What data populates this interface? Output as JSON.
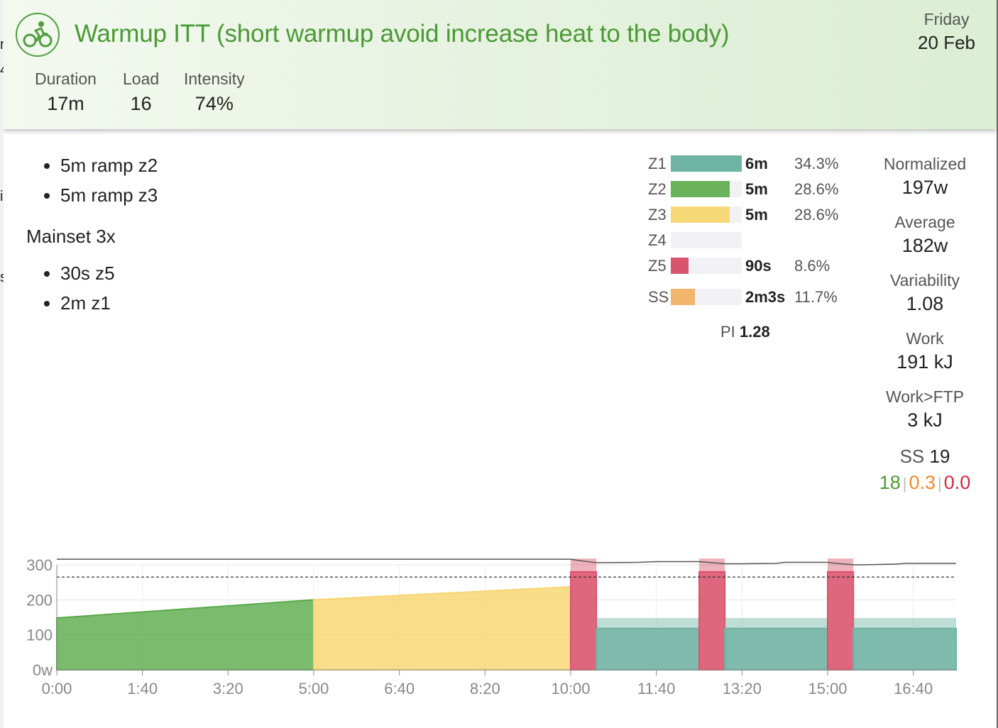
{
  "background": {
    "fragments": [
      "n",
      "4",
      "i",
      "s"
    ]
  },
  "header": {
    "icon": "bike-icon",
    "title": "Warmup ITT (short warmup avoid increase heat to the body)",
    "day": "Friday",
    "date": "20 Feb",
    "stats": [
      {
        "label": "Duration",
        "value": "17m"
      },
      {
        "label": "Load",
        "value": "16"
      },
      {
        "label": "Intensity",
        "value": "74%"
      }
    ]
  },
  "description": {
    "block1": [
      "5m ramp z2",
      "5m ramp z3"
    ],
    "heading": "Mainset 3x",
    "block2": [
      "30s z5",
      "2m z1"
    ]
  },
  "zones": [
    {
      "label": "Z1",
      "duration": "6m",
      "percent": "34.3%",
      "fill": 1.0,
      "color": "#6fb3a2"
    },
    {
      "label": "Z2",
      "duration": "5m",
      "percent": "28.6%",
      "fill": 0.834,
      "color": "#6ab35a"
    },
    {
      "label": "Z3",
      "duration": "5m",
      "percent": "28.6%",
      "fill": 0.834,
      "color": "#f7d876"
    },
    {
      "label": "Z4",
      "duration": "",
      "percent": "",
      "fill": 0,
      "color": "#f2a14b"
    },
    {
      "label": "Z5",
      "duration": "90s",
      "percent": "8.6%",
      "fill": 0.25,
      "color": "#d9546d"
    },
    {
      "label": "SS",
      "duration": "2m3s",
      "percent": "11.7%",
      "fill": 0.34,
      "color": "#f2b56b"
    }
  ],
  "pi": {
    "label": "PI",
    "value": "1.28"
  },
  "metrics": [
    {
      "label": "Normalized",
      "value": "197w"
    },
    {
      "label": "Average",
      "value": "182w"
    },
    {
      "label": "Variability",
      "value": "1.08"
    },
    {
      "label": "Work",
      "value": "191 kJ"
    },
    {
      "label": "Work>FTP",
      "value": "3 kJ"
    }
  ],
  "ss": {
    "label": "SS",
    "value": "19",
    "green": "18",
    "orange": "0.3",
    "red": "0.0"
  },
  "chart_data": {
    "type": "area",
    "x_unit": "seconds",
    "xlim": [
      0,
      1050
    ],
    "ylim": [
      0,
      300
    ],
    "y_ticks": [
      0,
      100,
      200,
      300
    ],
    "y_tick_labels": [
      "0w",
      "100",
      "200",
      "300"
    ],
    "x_ticks": [
      0,
      100,
      200,
      300,
      400,
      500,
      600,
      700,
      800,
      900,
      1000
    ],
    "x_tick_labels": [
      "0:00",
      "1:40",
      "3:20",
      "5:00",
      "6:40",
      "8:20",
      "10:00",
      "11:40",
      "13:20",
      "15:00",
      "16:40"
    ],
    "ftp_line": 265,
    "max_line": 316,
    "segments": [
      {
        "zone": "Z2",
        "start": 0,
        "end": 300,
        "from": 148,
        "to": 200,
        "color": "#5aaa4a"
      },
      {
        "zone": "Z3",
        "start": 300,
        "end": 600,
        "from": 200,
        "to": 237,
        "color": "#f7d56e"
      },
      {
        "zone": "Z5",
        "start": 600,
        "end": 630,
        "from": 280,
        "to": 280,
        "cap": 318,
        "color": "#d9546d"
      },
      {
        "zone": "Z1",
        "start": 630,
        "end": 750,
        "from": 118,
        "to": 118,
        "cap": 148,
        "color": "#6fb3a2"
      },
      {
        "zone": "Z5",
        "start": 750,
        "end": 780,
        "from": 280,
        "to": 280,
        "cap": 318,
        "color": "#d9546d"
      },
      {
        "zone": "Z1",
        "start": 780,
        "end": 900,
        "from": 118,
        "to": 118,
        "cap": 148,
        "color": "#6fb3a2"
      },
      {
        "zone": "Z5",
        "start": 900,
        "end": 930,
        "from": 280,
        "to": 280,
        "cap": 318,
        "color": "#d9546d"
      },
      {
        "zone": "Z1",
        "start": 930,
        "end": 1050,
        "from": 118,
        "to": 118,
        "cap": 148,
        "color": "#6fb3a2"
      }
    ],
    "max_curve": [
      [
        0,
        316
      ],
      [
        600,
        316
      ],
      [
        610,
        312
      ],
      [
        620,
        309
      ],
      [
        630,
        306
      ],
      [
        680,
        307
      ],
      [
        700,
        309
      ],
      [
        750,
        309
      ],
      [
        760,
        307
      ],
      [
        780,
        303
      ],
      [
        800,
        303
      ],
      [
        840,
        304
      ],
      [
        850,
        307
      ],
      [
        900,
        307
      ],
      [
        910,
        304
      ],
      [
        930,
        300
      ],
      [
        940,
        300
      ],
      [
        980,
        302
      ],
      [
        990,
        304
      ],
      [
        1050,
        304
      ]
    ]
  }
}
